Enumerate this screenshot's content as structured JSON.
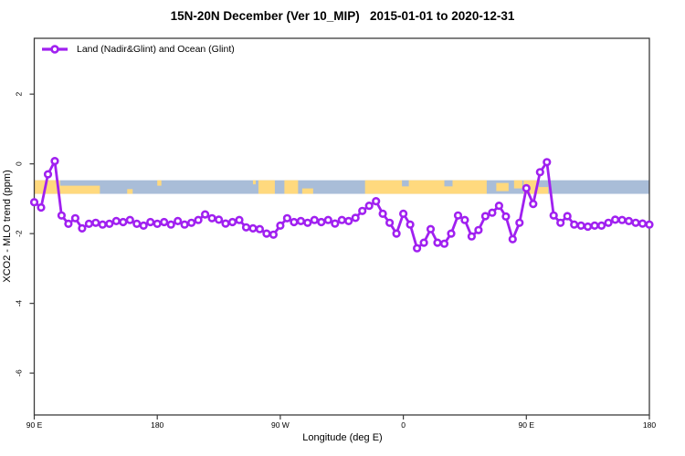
{
  "title": "15N-20N December (Ver 10_MIP)   2015-01-01 to 2020-12-31",
  "legend": {
    "label": "Land (Nadir&Glint) and Ocean (Glint)"
  },
  "colors": {
    "series": "#a020f0",
    "marker_fill": "#ffffff",
    "ocean_band": "#a9bdd8",
    "land_band": "#ffd97e",
    "frame": "#3b3b3b",
    "text": "#000000"
  },
  "axes": {
    "x": {
      "label": "Longitude (deg E)",
      "range": [
        90,
        540
      ],
      "ticks": [
        {
          "value": 90,
          "label": "90 E"
        },
        {
          "value": 180,
          "label": "180"
        },
        {
          "value": 270,
          "label": "90 W"
        },
        {
          "value": 360,
          "label": "0"
        },
        {
          "value": 450,
          "label": "90 E"
        },
        {
          "value": 540,
          "label": "180"
        }
      ]
    },
    "y": {
      "label": "XCO2 - MLO trend (ppm)",
      "range": [
        -7.2,
        3.6
      ],
      "ticks": [
        {
          "value": 2,
          "label": "2"
        },
        {
          "value": 0,
          "label": "0"
        },
        {
          "value": -2,
          "label": "-2"
        },
        {
          "value": -4,
          "label": "-4"
        },
        {
          "value": -6,
          "label": "-6"
        }
      ]
    }
  },
  "chart_data": {
    "type": "line",
    "title": "15N-20N December (Ver 10_MIP)   2015-01-01 to 2020-12-31",
    "xlabel": "Longitude (deg E)",
    "ylabel": "XCO2 - MLO trend (ppm)",
    "xlim": [
      90,
      540
    ],
    "ylim": [
      -7.2,
      3.6
    ],
    "grid": false,
    "legend_position": "top-left",
    "series": [
      {
        "name": "Land (Nadir&Glint) and Ocean (Glint)",
        "color": "#a020f0",
        "marker": "open-circle",
        "x": [
          90,
          95,
          100,
          105,
          110,
          115,
          120,
          125,
          130,
          135,
          140,
          145,
          150,
          155,
          160,
          165,
          170,
          175,
          180,
          185,
          190,
          195,
          200,
          205,
          210,
          215,
          220,
          225,
          230,
          235,
          240,
          245,
          250,
          255,
          260,
          265,
          270,
          275,
          280,
          285,
          290,
          295,
          300,
          305,
          310,
          315,
          320,
          325,
          330,
          335,
          340,
          345,
          350,
          355,
          360,
          365,
          370,
          375,
          380,
          385,
          390,
          395,
          400,
          405,
          410,
          415,
          420,
          425,
          430,
          435,
          440,
          445,
          450,
          455,
          460,
          465,
          470,
          475,
          480,
          485,
          490,
          495,
          500,
          505,
          510,
          515,
          520,
          525,
          530,
          535,
          540
        ],
        "y": [
          -1.1,
          -1.25,
          -0.3,
          0.08,
          -1.48,
          -1.72,
          -1.56,
          -1.85,
          -1.72,
          -1.69,
          -1.74,
          -1.72,
          -1.64,
          -1.67,
          -1.61,
          -1.72,
          -1.77,
          -1.67,
          -1.72,
          -1.67,
          -1.74,
          -1.64,
          -1.74,
          -1.69,
          -1.61,
          -1.45,
          -1.56,
          -1.6,
          -1.71,
          -1.67,
          -1.61,
          -1.82,
          -1.85,
          -1.87,
          -2.0,
          -2.03,
          -1.77,
          -1.56,
          -1.67,
          -1.64,
          -1.69,
          -1.61,
          -1.67,
          -1.61,
          -1.71,
          -1.61,
          -1.64,
          -1.55,
          -1.35,
          -1.2,
          -1.07,
          -1.43,
          -1.69,
          -2.0,
          -1.43,
          -1.74,
          -2.42,
          -2.26,
          -1.87,
          -2.26,
          -2.29,
          -2.0,
          -1.48,
          -1.61,
          -2.08,
          -1.9,
          -1.5,
          -1.4,
          -1.2,
          -1.51,
          -2.16,
          -1.69,
          -0.7,
          -1.15,
          -0.24,
          0.05,
          -1.48,
          -1.69,
          -1.5,
          -1.74,
          -1.77,
          -1.8,
          -1.77,
          -1.77,
          -1.69,
          -1.6,
          -1.61,
          -1.64,
          -1.69,
          -1.71,
          -1.74
        ]
      }
    ],
    "map_band": {
      "description": "land/ocean strip for 15N-20N",
      "y_from": -0.86,
      "y_to": -0.47,
      "ocean_color": "#a9bdd8",
      "land_color": "#ffd97e",
      "land_segments": [
        {
          "from": 90,
          "to": 109,
          "h": 1.0,
          "align": "mid"
        },
        {
          "from": 109,
          "to": 138,
          "h": 0.6,
          "align": "bottom"
        },
        {
          "from": 158,
          "to": 162,
          "h": 0.35,
          "align": "bottom"
        },
        {
          "from": 180,
          "to": 183,
          "h": 0.4,
          "align": "top"
        },
        {
          "from": 250,
          "to": 252,
          "h": 0.3,
          "align": "top"
        },
        {
          "from": 254,
          "to": 266,
          "h": 1.0,
          "align": "mid"
        },
        {
          "from": 273,
          "to": 283,
          "h": 1.0,
          "align": "mid"
        },
        {
          "from": 286,
          "to": 294,
          "h": 0.4,
          "align": "bottom"
        },
        {
          "from": 332,
          "to": 421,
          "h": 1.0,
          "align": "mid"
        },
        {
          "from": 428,
          "to": 437,
          "h": 0.6,
          "align": "mid"
        },
        {
          "from": 441,
          "to": 447,
          "h": 0.6,
          "align": "top"
        },
        {
          "from": 448,
          "to": 459,
          "h": 1.0,
          "align": "mid"
        },
        {
          "from": 459,
          "to": 466,
          "h": 0.5,
          "align": "bottom"
        }
      ],
      "ocean_notches": [
        {
          "from": 359,
          "to": 364,
          "h": 0.45,
          "align": "top"
        },
        {
          "from": 390,
          "to": 396,
          "h": 0.45,
          "align": "top"
        }
      ]
    }
  }
}
